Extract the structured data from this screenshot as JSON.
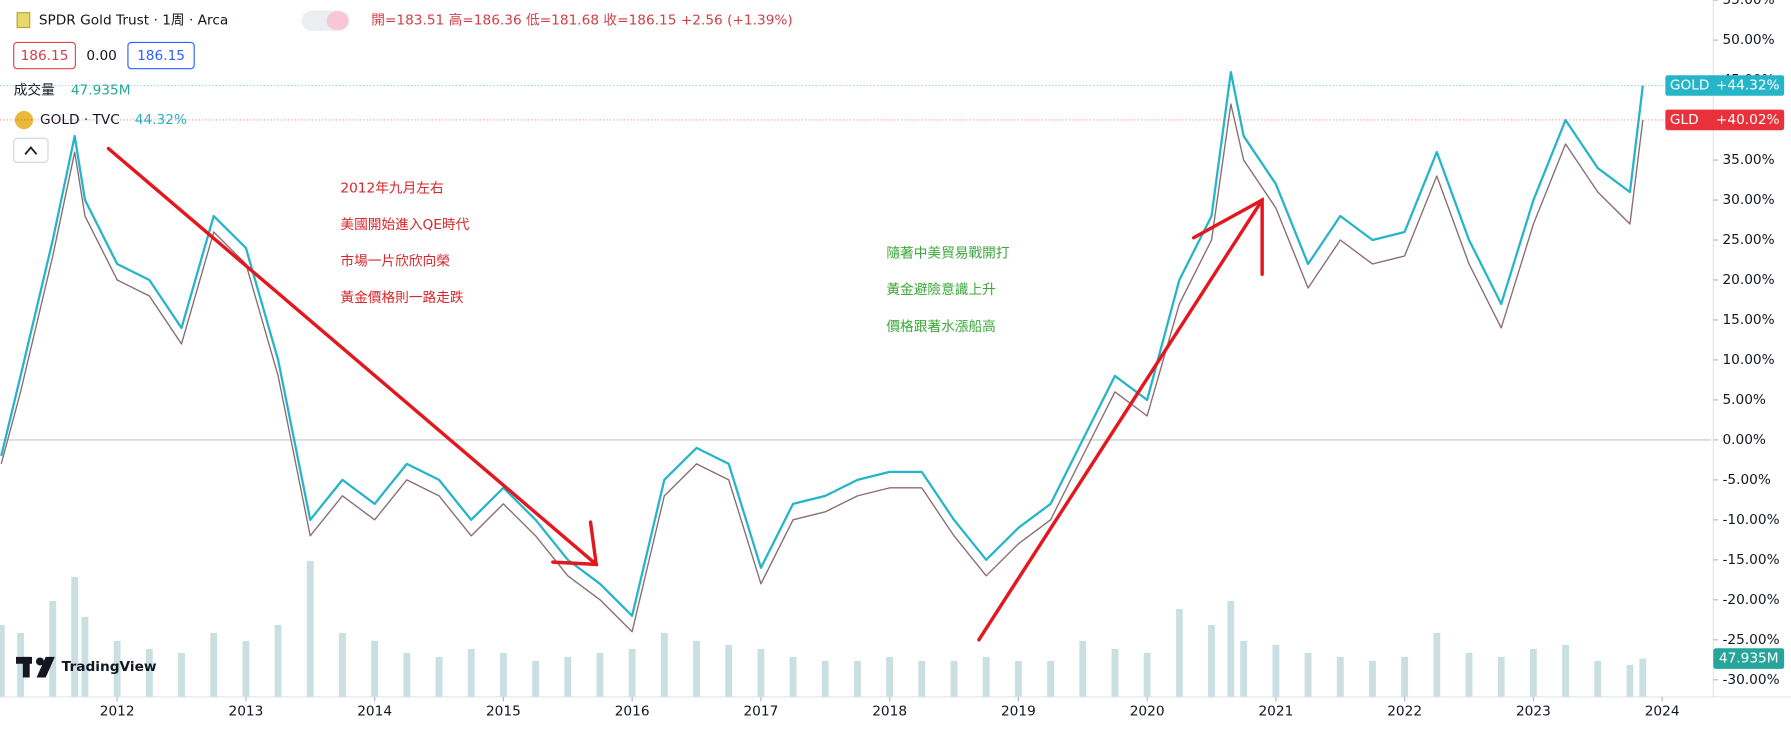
{
  "chart_data": {
    "type": "line",
    "title": "SPDR Gold Trust · 1周 · Arca",
    "quote": "開=183.51 高=186.36 低=181.68 收=186.15 +2.56 (+1.39%)",
    "price_boxes": [
      "186.15",
      "0.00",
      "186.15"
    ],
    "volume_label": "成交量",
    "volume_value": "47.935M",
    "compare_label": "GOLD · TVC",
    "compare_value": "44.32%",
    "logo": "TradingView",
    "annotations": [
      {
        "color": "#d8262a",
        "lines": [
          "2012年九月左右",
          "美國開始進入QE時代",
          "市場一片欣欣向榮",
          "黃金價格則一路走跌"
        ]
      },
      {
        "color": "#3aa83a",
        "lines": [
          "隨著中美貿易戰開打",
          "黃金避險意識上升",
          "價格跟著水漲船高"
        ]
      }
    ],
    "x": [
      2011.1,
      2011.25,
      2011.5,
      2011.67,
      2011.75,
      2012.0,
      2012.25,
      2012.5,
      2012.75,
      2013.0,
      2013.25,
      2013.5,
      2013.75,
      2014.0,
      2014.25,
      2014.5,
      2014.75,
      2015.0,
      2015.25,
      2015.5,
      2015.75,
      2016.0,
      2016.25,
      2016.5,
      2016.75,
      2017.0,
      2017.25,
      2017.5,
      2017.75,
      2018.0,
      2018.25,
      2018.5,
      2018.75,
      2019.0,
      2019.25,
      2019.5,
      2019.75,
      2020.0,
      2020.25,
      2020.5,
      2020.65,
      2020.75,
      2021.0,
      2021.25,
      2021.5,
      2021.75,
      2022.0,
      2022.25,
      2022.5,
      2022.75,
      2023.0,
      2023.25,
      2023.5,
      2023.75,
      2023.85
    ],
    "series": [
      {
        "name": "GLD",
        "color": "#8a6d74",
        "tag": "+40.02%",
        "tag_color": "#e8313a",
        "values": [
          -3,
          6,
          23,
          36,
          28,
          20,
          18,
          12,
          26,
          22,
          8,
          -12,
          -7,
          -10,
          -5,
          -7,
          -12,
          -8,
          -12,
          -17,
          -20,
          -24,
          -7,
          -3,
          -5,
          -18,
          -10,
          -9,
          -7,
          -6,
          -6,
          -12,
          -17,
          -13,
          -10,
          -2,
          6,
          3,
          17,
          25,
          42,
          35,
          29,
          19,
          25,
          22,
          23,
          33,
          22,
          14,
          27,
          37,
          31,
          27,
          40.02
        ]
      },
      {
        "name": "GOLD",
        "color": "#26b5c8",
        "tag": "+44.32%",
        "tag_color": "#26b5c8",
        "values": [
          -2,
          8,
          25,
          38,
          30,
          22,
          20,
          14,
          28,
          24,
          10,
          -10,
          -5,
          -8,
          -3,
          -5,
          -10,
          -6,
          -10,
          -15,
          -18,
          -22,
          -5,
          -1,
          -3,
          -16,
          -8,
          -7,
          -5,
          -4,
          -4,
          -10,
          -15,
          -11,
          -8,
          0,
          8,
          5,
          20,
          28,
          46,
          38,
          32,
          22,
          28,
          25,
          26,
          36,
          25,
          17,
          30,
          40,
          34,
          31,
          44.32
        ]
      }
    ],
    "volume": {
      "color": "#c9dfe2",
      "tag_color": "#26a69a",
      "ylim": [
        0,
        250
      ],
      "values": [
        90,
        80,
        120,
        150,
        100,
        70,
        60,
        55,
        80,
        70,
        90,
        170,
        80,
        70,
        55,
        50,
        60,
        55,
        45,
        50,
        55,
        60,
        80,
        70,
        65,
        60,
        50,
        45,
        45,
        50,
        45,
        45,
        50,
        45,
        45,
        70,
        60,
        55,
        110,
        90,
        120,
        70,
        65,
        55,
        50,
        45,
        50,
        80,
        55,
        50,
        60,
        65,
        45,
        40,
        47.935
      ]
    },
    "xlim": [
      2011.09,
      2024.38
    ],
    "xticks": [
      2012,
      2013,
      2014,
      2015,
      2016,
      2017,
      2018,
      2019,
      2020,
      2021,
      2022,
      2023,
      2024
    ],
    "ylim": [
      -32.14,
      55
    ],
    "yticks": [
      {
        "value": 55,
        "label": "55.00%"
      },
      {
        "value": 50,
        "label": "50.00%"
      },
      {
        "value": 45,
        "label": "45.00%"
      },
      {
        "value": 40,
        "label": "40.00%"
      },
      {
        "value": 35,
        "label": "35.00%"
      },
      {
        "value": 30,
        "label": "30.00%"
      },
      {
        "value": 25,
        "label": "25.00%"
      },
      {
        "value": 20,
        "label": "20.00%"
      },
      {
        "value": 15,
        "label": "15.00%"
      },
      {
        "value": 10,
        "label": "10.00%"
      },
      {
        "value": 5,
        "label": "5.00%"
      },
      {
        "value": 0,
        "label": "0.00%"
      },
      {
        "value": -5,
        "label": "-5.00%"
      },
      {
        "value": -10,
        "label": "-10.00%"
      },
      {
        "value": -15,
        "label": "-15.00%"
      },
      {
        "value": -20,
        "label": "-20.00%"
      },
      {
        "value": -25,
        "label": "-25.00%"
      },
      {
        "value": -30,
        "label": "-30.00%"
      }
    ],
    "baseline": 0,
    "grid": false
  }
}
